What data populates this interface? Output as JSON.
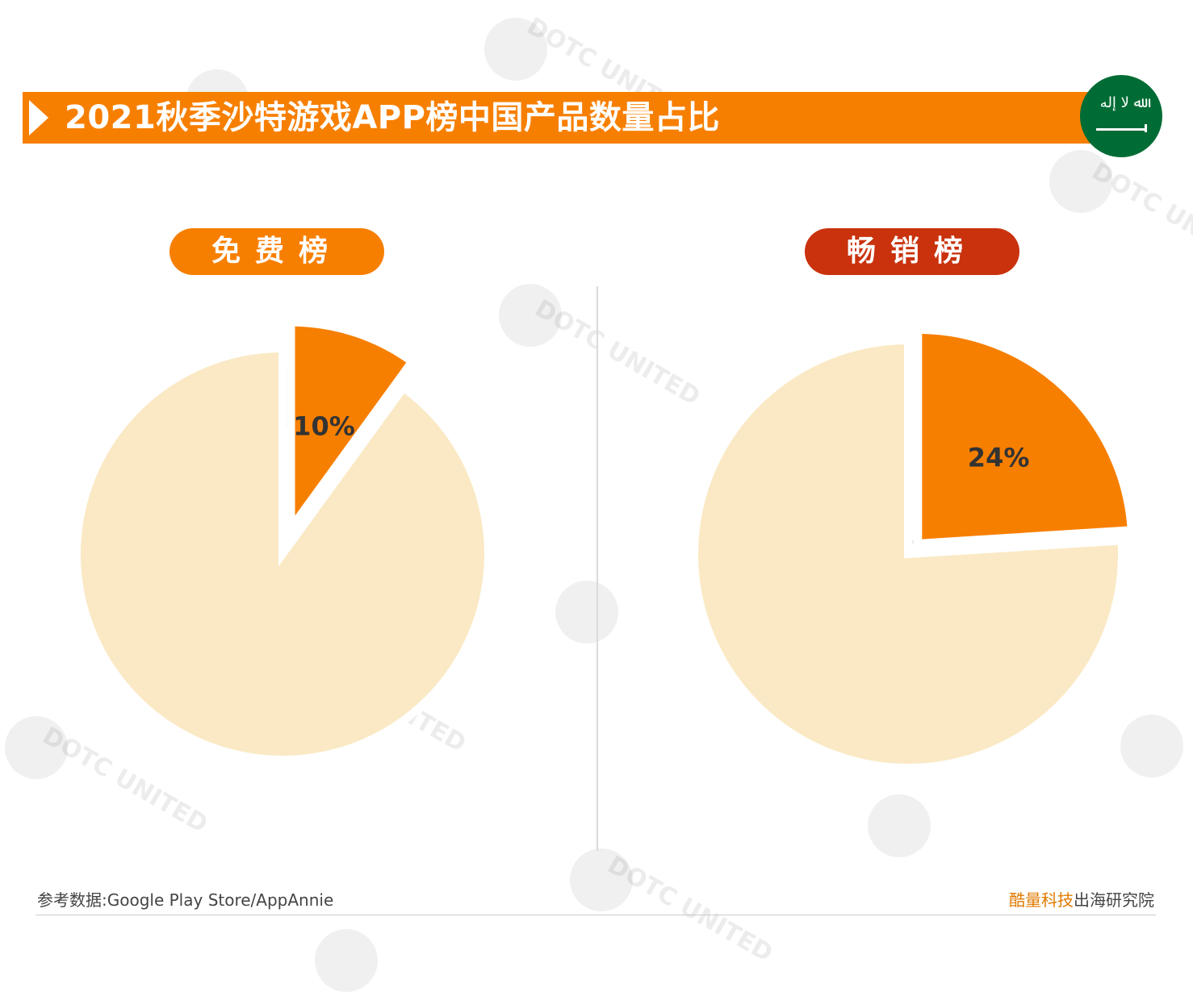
{
  "header": {
    "title": "2021秋季沙特游戏APP榜中国产品数量占比",
    "flag_icon": "saudi-flag-icon"
  },
  "colors": {
    "accent": "#f77f00",
    "accent_dark": "#c9320d",
    "rest": "#fae9c4",
    "label": "#333333"
  },
  "chart_data": [
    {
      "type": "pie",
      "title": "免费榜",
      "slices": [
        {
          "label": "10%",
          "value": 10,
          "highlight": true
        },
        {
          "label": "",
          "value": 90,
          "highlight": false
        }
      ]
    },
    {
      "type": "pie",
      "title": "畅销榜",
      "slices": [
        {
          "label": "24%",
          "value": 24,
          "highlight": true
        },
        {
          "label": "",
          "value": 76,
          "highlight": false
        }
      ]
    }
  ],
  "footer": {
    "source": "参考数据:Google Play Store/AppAnnie",
    "credit_brand": "酷量科技",
    "credit_rest": "出海研究院"
  },
  "watermark": {
    "text": "DOTC UNITED"
  }
}
